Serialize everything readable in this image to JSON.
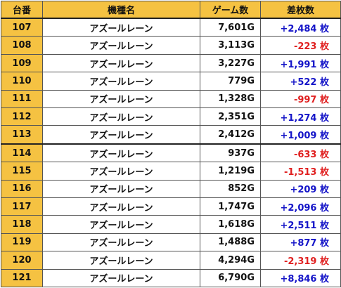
{
  "table": {
    "headers": {
      "number": "台番",
      "machine": "機種名",
      "games": "ゲーム数",
      "difference": "差枚数"
    },
    "rows": [
      {
        "number": "107",
        "machine": "アズールレーン",
        "games": "7,601G",
        "difference": "+2,484 枚"
      },
      {
        "number": "108",
        "machine": "アズールレーン",
        "games": "3,113G",
        "difference": "-223 枚"
      },
      {
        "number": "109",
        "machine": "アズールレーン",
        "games": "3,227G",
        "difference": "+1,991 枚"
      },
      {
        "number": "110",
        "machine": "アズールレーン",
        "games": "779G",
        "difference": "+522 枚"
      },
      {
        "number": "111",
        "machine": "アズールレーン",
        "games": "1,328G",
        "difference": "-997 枚"
      },
      {
        "number": "112",
        "machine": "アズールレーン",
        "games": "2,351G",
        "difference": "+1,274 枚"
      },
      {
        "number": "113",
        "machine": "アズールレーン",
        "games": "2,412G",
        "difference": "+1,009 枚"
      },
      {
        "number": "114",
        "machine": "アズールレーン",
        "games": "937G",
        "difference": "-633 枚"
      },
      {
        "number": "115",
        "machine": "アズールレーン",
        "games": "1,219G",
        "difference": "-1,513 枚"
      },
      {
        "number": "116",
        "machine": "アズールレーン",
        "games": "852G",
        "difference": "+209 枚"
      },
      {
        "number": "117",
        "machine": "アズールレーン",
        "games": "1,747G",
        "difference": "+2,096 枚"
      },
      {
        "number": "118",
        "machine": "アズールレーン",
        "games": "1,618G",
        "difference": "+2,511 枚"
      },
      {
        "number": "119",
        "machine": "アズールレーン",
        "games": "1,488G",
        "difference": "+877 枚"
      },
      {
        "number": "120",
        "machine": "アズールレーン",
        "games": "4,294G",
        "difference": "-2,319 枚"
      },
      {
        "number": "121",
        "machine": "アズールレーン",
        "games": "6,790G",
        "difference": "+8,846 枚"
      }
    ]
  },
  "colors": {
    "header_background": "#f5c242",
    "number_column_background": "#f5c242",
    "positive_difference": "#1414c8",
    "negative_difference": "#e02020",
    "grid_line": "#555555"
  }
}
